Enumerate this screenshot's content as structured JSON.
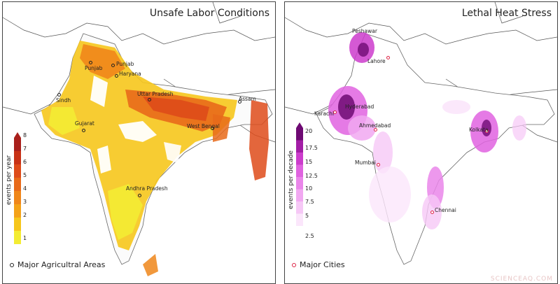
{
  "panels": {
    "left": {
      "title": "Unsafe Labor Conditions",
      "legend_title": "events per year",
      "ticks": [
        "1",
        "2",
        "3",
        "4",
        "5",
        "6",
        "7",
        "8"
      ],
      "colors": [
        "#f3ec33",
        "#f6c61c",
        "#f4a218",
        "#ef861a",
        "#e86a1a",
        "#de4b1a",
        "#c83216",
        "#a9201c"
      ],
      "marker_legend": "Major Agricultral Areas",
      "places": [
        "Punjab",
        "Punjab",
        "Haryana",
        "Sindh",
        "Uttar Pradesh",
        "Assam",
        "Gujarat",
        "West Bengal",
        "Andhra Pradesh"
      ]
    },
    "right": {
      "title": "Lethal Heat Stress",
      "legend_title": "events per decade",
      "ticks": [
        "2.5",
        "5",
        "7.5",
        "10",
        "12.5",
        "15",
        "17.5",
        "20"
      ],
      "colors": [
        "#fbe6fb",
        "#f6c8f6",
        "#f1a8f1",
        "#ea86ea",
        "#e063e0",
        "#cc3ccc",
        "#a31ea6",
        "#6e0a73"
      ],
      "marker_legend": "Major Cities",
      "places": [
        "Peshawar",
        "Lahore",
        "Karachi",
        "Hyderabad",
        "Ahmedabad",
        "Kolkata",
        "Mumbai",
        "Chennai"
      ]
    }
  },
  "watermark": "SCIENCEAQ.COM",
  "colors": {
    "ag_marker": "#222222",
    "city_marker": "#dd2244"
  }
}
